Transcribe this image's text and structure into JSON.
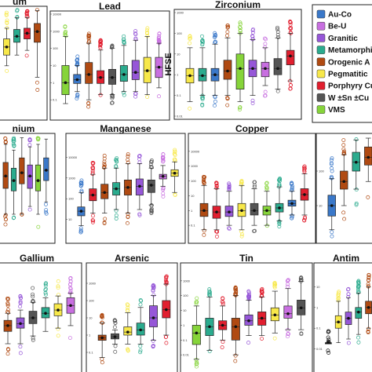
{
  "figure_title": "",
  "legend": {
    "items": [
      {
        "label": "Au-Co",
        "color": "#3a78c9"
      },
      {
        "label": "Be-U",
        "color": "#c86fe0"
      },
      {
        "label": "Granitic",
        "color": "#9657d8"
      },
      {
        "label": "Metamorphi",
        "color": "#2bab8e"
      },
      {
        "label": "Orogenic A",
        "color": "#b04a12"
      },
      {
        "label": "Pegmatitic",
        "color": "#f7e84a"
      },
      {
        "label": "Porphyry Cu",
        "color": "#e11f2f"
      },
      {
        "label": "W ±Sn ±Cu",
        "color": "#555555"
      },
      {
        "label": "VMS",
        "color": "#86d43a"
      }
    ]
  },
  "chart_data": [
    {
      "type": "box",
      "title": "um",
      "ylabel": "",
      "log": true,
      "ylim": [
        0.1,
        1000
      ],
      "boxes": [
        {
          "color": "#f7e84a",
          "q1": 20,
          "median": 40,
          "q3": 80,
          "wlo": 8,
          "whi": 200
        },
        {
          "color": "#2bab8e",
          "q1": 60,
          "median": 100,
          "q3": 180,
          "wlo": 20,
          "whi": 500
        },
        {
          "color": "#e11f2f",
          "q1": 80,
          "median": 130,
          "q3": 200,
          "wlo": 30,
          "whi": 500
        },
        {
          "color": "#b04a12",
          "q1": 60,
          "median": 150,
          "q3": 300,
          "wlo": 3,
          "whi": 900
        }
      ]
    },
    {
      "type": "box",
      "title": "Lead",
      "ylabel": "",
      "log": true,
      "ylim": [
        0.01,
        10000
      ],
      "ticks": [
        "0.1",
        "1",
        "10",
        "100",
        "1000",
        "10000"
      ],
      "boxes": [
        {
          "color": "#86d43a",
          "q1": 0.2,
          "median": 1,
          "q3": 10,
          "wlo": 0.06,
          "whi": 500
        },
        {
          "color": "#3a78c9",
          "q1": 0.9,
          "median": 1.5,
          "q3": 3,
          "wlo": 0.3,
          "whi": 10
        },
        {
          "color": "#b04a12",
          "q1": 0.9,
          "median": 3,
          "q3": 15,
          "wlo": 0.1,
          "whi": 200
        },
        {
          "color": "#e11f2f",
          "q1": 0.9,
          "median": 2,
          "q3": 5,
          "wlo": 0.2,
          "whi": 80
        },
        {
          "color": "#555555",
          "q1": 0.8,
          "median": 2,
          "q3": 6,
          "wlo": 0.2,
          "whi": 100
        },
        {
          "color": "#2bab8e",
          "q1": 1.2,
          "median": 3,
          "q3": 10,
          "wlo": 0.3,
          "whi": 150
        },
        {
          "color": "#9657d8",
          "q1": 1.5,
          "median": 4,
          "q3": 20,
          "wlo": 0.3,
          "whi": 300
        },
        {
          "color": "#f7e84a",
          "q1": 1,
          "median": 5,
          "q3": 30,
          "wlo": 0.2,
          "whi": 500
        },
        {
          "color": "#c86fe0",
          "q1": 2,
          "median": 8,
          "q3": 30,
          "wlo": 0.5,
          "whi": 200
        }
      ]
    },
    {
      "type": "box",
      "title": "Zirconium",
      "ylabel": "HFSE",
      "log": true,
      "ylim": [
        0.01,
        1000
      ],
      "ticks": [
        "0.01",
        "0.1",
        "1",
        "10",
        "100",
        "1000"
      ],
      "boxes": [
        {
          "color": "#f7e84a",
          "q1": 0.4,
          "median": 0.9,
          "q3": 2,
          "wlo": 0.05,
          "whi": 20
        },
        {
          "color": "#2bab8e",
          "q1": 0.5,
          "median": 0.9,
          "q3": 2,
          "wlo": 0.1,
          "whi": 20
        },
        {
          "color": "#3a78c9",
          "q1": 0.5,
          "median": 1,
          "q3": 2,
          "wlo": 0.1,
          "whi": 30
        },
        {
          "color": "#b04a12",
          "q1": 0.6,
          "median": 1.5,
          "q3": 5,
          "wlo": 0.1,
          "whi": 60
        },
        {
          "color": "#86d43a",
          "q1": 0.2,
          "median": 2,
          "q3": 10,
          "wlo": 0.05,
          "whi": 100
        },
        {
          "color": "#9657d8",
          "q1": 0.8,
          "median": 2,
          "q3": 5,
          "wlo": 0.1,
          "whi": 50
        },
        {
          "color": "#c86fe0",
          "q1": 0.8,
          "median": 2,
          "q3": 4,
          "wlo": 0.3,
          "whi": 20
        },
        {
          "color": "#555555",
          "q1": 1,
          "median": 2,
          "q3": 6,
          "wlo": 0.2,
          "whi": 60
        },
        {
          "color": "#e11f2f",
          "q1": 3,
          "median": 8,
          "q3": 15,
          "wlo": 0.5,
          "whi": 100
        }
      ]
    },
    {
      "type": "box",
      "title": "nium",
      "ylabel": "",
      "log": true,
      "ylim": [
        0.1,
        1000
      ],
      "boxes": [
        {
          "color": "#b04a12",
          "q1": 10,
          "median": 30,
          "q3": 100,
          "wlo": 1,
          "whi": 500
        },
        {
          "color": "#2bab8e",
          "q1": 8,
          "median": 20,
          "q3": 60,
          "wlo": 1,
          "whi": 300
        },
        {
          "color": "#b04a12",
          "q1": 15,
          "median": 40,
          "q3": 150,
          "wlo": 1,
          "whi": 900
        },
        {
          "color": "#9657d8",
          "q1": 10,
          "median": 30,
          "q3": 80,
          "wlo": 2,
          "whi": 400
        },
        {
          "color": "#86d43a",
          "q1": 8,
          "median": 20,
          "q3": 80,
          "wlo": 1,
          "whi": 500
        },
        {
          "color": "#3a78c9",
          "q1": 20,
          "median": 50,
          "q3": 150,
          "wlo": 3,
          "whi": 800
        }
      ]
    },
    {
      "type": "box",
      "title": "Manganese",
      "ylabel": "",
      "log": true,
      "ylim": [
        1,
        100000
      ],
      "ticks": [
        "10",
        "100",
        "1000",
        "10000"
      ],
      "boxes": [
        {
          "color": "#3a78c9",
          "q1": 15,
          "median": 25,
          "q3": 40,
          "wlo": 5,
          "whi": 200
        },
        {
          "color": "#e11f2f",
          "q1": 80,
          "median": 150,
          "q3": 300,
          "wlo": 20,
          "whi": 1500
        },
        {
          "color": "#b04a12",
          "q1": 100,
          "median": 200,
          "q3": 500,
          "wlo": 20,
          "whi": 3000
        },
        {
          "color": "#2bab8e",
          "q1": 150,
          "median": 300,
          "q3": 600,
          "wlo": 30,
          "whi": 3000
        },
        {
          "color": "#b04a12",
          "q1": 150,
          "median": 350,
          "q3": 800,
          "wlo": 20,
          "whi": 5000
        },
        {
          "color": "#9657d8",
          "q1": 150,
          "median": 400,
          "q3": 900,
          "wlo": 30,
          "whi": 5000
        },
        {
          "color": "#555555",
          "q1": 200,
          "median": 450,
          "q3": 800,
          "wlo": 50,
          "whi": 3000
        },
        {
          "color": "#c86fe0",
          "q1": 900,
          "median": 1200,
          "q3": 1500,
          "wlo": 400,
          "whi": 4000
        },
        {
          "color": "#f7e84a",
          "q1": 1200,
          "median": 1700,
          "q3": 2500,
          "wlo": 200,
          "whi": 6000
        }
      ]
    },
    {
      "type": "box",
      "title": "Copper",
      "ylabel": "",
      "log": true,
      "ylim": [
        0.01,
        100000
      ],
      "ticks": [
        "0.1",
        "1",
        "10",
        "100",
        "1000",
        "10000"
      ],
      "boxes": [
        {
          "color": "#b04a12",
          "q1": 0.4,
          "median": 1,
          "q3": 3,
          "wlo": 0.05,
          "whi": 50
        },
        {
          "color": "#e11f2f",
          "q1": 0.3,
          "median": 0.8,
          "q3": 2,
          "wlo": 0.05,
          "whi": 30
        },
        {
          "color": "#9657d8",
          "q1": 0.4,
          "median": 0.8,
          "q3": 2,
          "wlo": 0.1,
          "whi": 20
        },
        {
          "color": "#f7e84a",
          "q1": 0.4,
          "median": 1,
          "q3": 3,
          "wlo": 0.05,
          "whi": 50
        },
        {
          "color": "#555555",
          "q1": 0.5,
          "median": 1,
          "q3": 3,
          "wlo": 0.1,
          "whi": 30
        },
        {
          "color": "#86d43a",
          "q1": 0.5,
          "median": 1,
          "q3": 2,
          "wlo": 0.1,
          "whi": 20
        },
        {
          "color": "#2bab8e",
          "q1": 0.8,
          "median": 1.5,
          "q3": 3,
          "wlo": 0.2,
          "whi": 40
        },
        {
          "color": "#3a78c9",
          "q1": 2,
          "median": 3,
          "q3": 5,
          "wlo": 0.5,
          "whi": 20
        },
        {
          "color": "#e11f2f",
          "q1": 5,
          "median": 12,
          "q3": 30,
          "wlo": 0.5,
          "whi": 300
        }
      ]
    },
    {
      "type": "box",
      "title": "",
      "ylabel": "",
      "log": true,
      "ylim": [
        1,
        1000
      ],
      "ticks": [
        "10",
        "100"
      ],
      "boxes": [
        {
          "color": "#3a78c9",
          "q1": 5,
          "median": 10,
          "q3": 20,
          "wlo": 2,
          "whi": 60
        },
        {
          "color": "#b04a12",
          "q1": 30,
          "median": 50,
          "q3": 100,
          "wlo": 10,
          "whi": 300
        },
        {
          "color": "#2bab8e",
          "q1": 100,
          "median": 180,
          "q3": 350,
          "wlo": 30,
          "whi": 800
        },
        {
          "color": "#b04a12",
          "q1": 150,
          "median": 250,
          "q3": 500,
          "wlo": 50,
          "whi": 900
        }
      ]
    },
    {
      "type": "box",
      "title": "Gallium",
      "ylabel": "",
      "log": true,
      "ylim": [
        0.1,
        1000
      ],
      "boxes": [
        {
          "color": "#b04a12",
          "q1": 3,
          "median": 5,
          "q3": 8,
          "wlo": 1,
          "whi": 15
        },
        {
          "color": "#9657d8",
          "q1": 4,
          "median": 6,
          "q3": 10,
          "wlo": 1,
          "whi": 20
        },
        {
          "color": "#555555",
          "q1": 6,
          "median": 10,
          "q3": 18,
          "wlo": 2,
          "whi": 40
        },
        {
          "color": "#2bab8e",
          "q1": 10,
          "median": 15,
          "q3": 25,
          "wlo": 3,
          "whi": 60
        },
        {
          "color": "#f7e84a",
          "q1": 12,
          "median": 20,
          "q3": 35,
          "wlo": 4,
          "whi": 70
        },
        {
          "color": "#c86fe0",
          "q1": 15,
          "median": 30,
          "q3": 60,
          "wlo": 5,
          "whi": 90
        }
      ]
    },
    {
      "type": "box",
      "title": "Arsenic",
      "ylabel": "",
      "log": true,
      "ylim": [
        0.01,
        10000
      ],
      "ticks": [
        "0.1",
        "1",
        "10",
        "100",
        "1000"
      ],
      "boxes": [
        {
          "color": "#b04a12",
          "q1": 0.5,
          "median": 0.7,
          "q3": 1,
          "wlo": 0.05,
          "whi": 5
        },
        {
          "color": "#555555",
          "q1": 0.6,
          "median": 0.8,
          "q3": 1.2,
          "wlo": 0.3,
          "whi": 2
        },
        {
          "color": "#f7e84a",
          "q1": 1,
          "median": 1.5,
          "q3": 3,
          "wlo": 0.3,
          "whi": 20
        },
        {
          "color": "#2bab8e",
          "q1": 1,
          "median": 2,
          "q3": 5,
          "wlo": 0.3,
          "whi": 40
        },
        {
          "color": "#9657d8",
          "q1": 3,
          "median": 10,
          "q3": 50,
          "wlo": 0.5,
          "whi": 200
        },
        {
          "color": "#e11f2f",
          "q1": 10,
          "median": 30,
          "q3": 100,
          "wlo": 1,
          "whi": 900
        }
      ]
    },
    {
      "type": "box",
      "title": "Tin",
      "ylabel": "",
      "log": true,
      "ylim": [
        0.001,
        10000
      ],
      "ticks": [
        "0.01",
        "0.1",
        "1",
        "10",
        "100",
        "1000"
      ],
      "boxes": [
        {
          "color": "#86d43a",
          "q1": 0.05,
          "median": 0.3,
          "q3": 1,
          "wlo": 0.005,
          "whi": 20
        },
        {
          "color": "#2bab8e",
          "q1": 0.2,
          "median": 0.8,
          "q3": 3,
          "wlo": 0.02,
          "whi": 80
        },
        {
          "color": "#e11f2f",
          "q1": 0.5,
          "median": 1,
          "q3": 2,
          "wlo": 0.1,
          "whi": 20
        },
        {
          "color": "#b04a12",
          "q1": 0.1,
          "median": 0.8,
          "q3": 3,
          "wlo": 0.01,
          "whi": 100
        },
        {
          "color": "#9657d8",
          "q1": 1,
          "median": 2,
          "q3": 5,
          "wlo": 0.2,
          "whi": 50
        },
        {
          "color": "#e11f2f",
          "q1": 1,
          "median": 3,
          "q3": 8,
          "wlo": 0.2,
          "whi": 80
        },
        {
          "color": "#f7e84a",
          "q1": 2,
          "median": 5,
          "q3": 15,
          "wlo": 0.3,
          "whi": 200
        },
        {
          "color": "#c86fe0",
          "q1": 3,
          "median": 6,
          "q3": 20,
          "wlo": 0.5,
          "whi": 300
        },
        {
          "color": "#555555",
          "q1": 5,
          "median": 15,
          "q3": 50,
          "wlo": 0.5,
          "whi": 900
        }
      ]
    },
    {
      "type": "box",
      "title": "Antim",
      "ylabel": "",
      "log": true,
      "ylim": [
        0.001,
        100
      ],
      "ticks": [
        "0.01",
        "0.1",
        "1",
        "10"
      ],
      "boxes": [
        {
          "color": "#1a1a1a",
          "q1": 0.02,
          "median": 0.02,
          "q3": 0.02,
          "wlo": 0.02,
          "whi": 0.02
        },
        {
          "color": "#f7e84a",
          "q1": 0.1,
          "median": 0.2,
          "q3": 0.4,
          "wlo": 0.02,
          "whi": 2
        },
        {
          "color": "#9657d8",
          "q1": 0.15,
          "median": 0.3,
          "q3": 0.6,
          "wlo": 0.03,
          "whi": 3
        },
        {
          "color": "#2bab8e",
          "q1": 0.3,
          "median": 0.6,
          "q3": 1,
          "wlo": 0.05,
          "whi": 5
        },
        {
          "color": "#b04a12",
          "q1": 0.5,
          "median": 1,
          "q3": 2,
          "wlo": 0.1,
          "whi": 10
        }
      ]
    }
  ]
}
